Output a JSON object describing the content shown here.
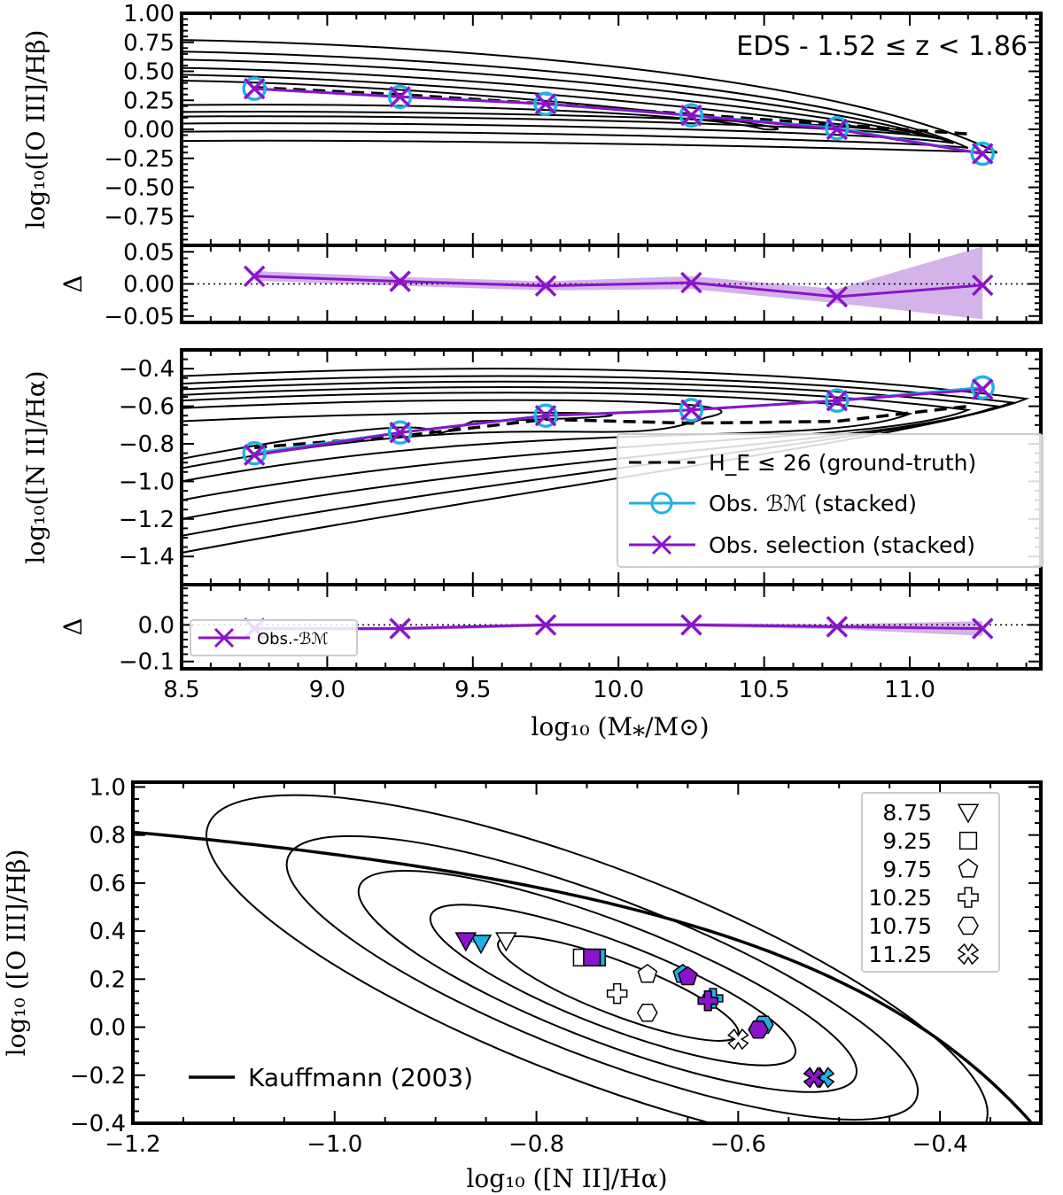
{
  "figure": {
    "panel_a_note": "EDS - 1.52 ≤ z < 1.86",
    "legend_main": {
      "ground_truth": "H_E ≤ 26 (ground-truth)",
      "bm": "Obs. ℬℳ (stacked)",
      "selection": "Obs. selection (stacked)"
    },
    "legend_delta": "Obs.-ℬℳ",
    "xlabel_top": "log₁₀ (M⁎/M⊙)",
    "xlabel_bottom": "log₁₀ ([N II]/Hα)",
    "kauffmann_label": "Kauffmann (2003)"
  },
  "colors": {
    "bm": "#1fb1e6",
    "selection": "#8a14c9",
    "selection_fill": "#c9a0e6",
    "contour": "#000000"
  },
  "chart_data": [
    {
      "id": "o3hb_vs_mass",
      "type": "line",
      "ylabel": "log₁₀([O III]/Hβ)",
      "xlim": [
        8.5,
        11.45
      ],
      "ylim": [
        -1.0,
        1.0
      ],
      "yticks": [
        "1.00",
        "0.75",
        "0.50",
        "0.25",
        "0.00",
        "−0.25",
        "−0.50",
        "−0.75"
      ],
      "ytick_values": [
        1.0,
        0.75,
        0.5,
        0.25,
        0.0,
        -0.25,
        -0.5,
        -0.75
      ],
      "x": [
        8.75,
        9.25,
        9.75,
        10.25,
        10.75,
        11.25
      ],
      "series": [
        {
          "name": "H_E ≤ 26 (ground-truth)",
          "style": "dashed",
          "x": [
            8.75,
            9.25,
            9.75,
            10.25,
            10.75,
            11.2
          ],
          "values": [
            0.36,
            0.3,
            0.22,
            0.13,
            0.04,
            -0.04
          ]
        },
        {
          "name": "Obs. BM (stacked)",
          "marker": "circle",
          "values": [
            0.35,
            0.28,
            0.22,
            0.12,
            0.01,
            -0.21
          ]
        },
        {
          "name": "Obs. selection (stacked)",
          "marker": "x",
          "values": [
            0.35,
            0.28,
            0.22,
            0.12,
            0.0,
            -0.21
          ]
        }
      ]
    },
    {
      "id": "delta_o3hb",
      "type": "line",
      "ylabel": "Δ",
      "xlim": [
        8.5,
        11.45
      ],
      "ylim": [
        -0.06,
        0.06
      ],
      "yticks": [
        "0.05",
        "0.00",
        "−0.05"
      ],
      "ytick_values": [
        0.05,
        0.0,
        -0.05
      ],
      "x": [
        8.75,
        9.25,
        9.75,
        10.25,
        10.75,
        11.25
      ],
      "values": [
        0.012,
        0.004,
        -0.003,
        0.002,
        -0.02,
        -0.002
      ],
      "band_low": [
        0.005,
        -0.003,
        -0.01,
        -0.008,
        -0.03,
        -0.055
      ],
      "band_high": [
        0.02,
        0.011,
        0.004,
        0.012,
        -0.008,
        0.058
      ]
    },
    {
      "id": "n2ha_vs_mass",
      "type": "line",
      "ylabel": "log₁₀([N II]/Hα)",
      "xlim": [
        8.5,
        11.45
      ],
      "ylim": [
        -1.55,
        -0.3
      ],
      "yticks": [
        "−0.4",
        "−0.6",
        "−0.8",
        "−1.0",
        "−1.2",
        "−1.4"
      ],
      "ytick_values": [
        -0.4,
        -0.6,
        -0.8,
        -1.0,
        -1.2,
        -1.4
      ],
      "x": [
        8.75,
        9.25,
        9.75,
        10.25,
        10.75,
        11.25
      ],
      "series": [
        {
          "name": "H_E ≤ 26 (ground-truth)",
          "style": "dashed",
          "x": [
            8.75,
            9.25,
            9.75,
            10.25,
            10.75,
            11.2
          ],
          "values": [
            -0.82,
            -0.76,
            -0.67,
            -0.69,
            -0.68,
            -0.6
          ]
        },
        {
          "name": "Obs. BM (stacked)",
          "marker": "circle",
          "values": [
            -0.85,
            -0.74,
            -0.65,
            -0.62,
            -0.57,
            -0.5
          ]
        },
        {
          "name": "Obs. selection (stacked)",
          "marker": "x",
          "values": [
            -0.86,
            -0.74,
            -0.65,
            -0.62,
            -0.57,
            -0.51
          ]
        }
      ]
    },
    {
      "id": "delta_n2ha",
      "type": "line",
      "ylabel": "Δ",
      "xlim": [
        8.5,
        11.45
      ],
      "ylim": [
        -0.12,
        0.11
      ],
      "yticks": [
        "0.0",
        "−0.1"
      ],
      "ytick_values": [
        0.0,
        -0.1
      ],
      "x": [
        8.75,
        9.25,
        9.75,
        10.25,
        10.75,
        11.25
      ],
      "xticks": [
        "8.5",
        "9.0",
        "9.5",
        "10.0",
        "10.5",
        "11.0"
      ],
      "xtick_values": [
        8.5,
        9.0,
        9.5,
        10.0,
        10.5,
        11.0
      ],
      "values": [
        -0.01,
        -0.01,
        0.0,
        0.0,
        -0.005,
        -0.01
      ],
      "band_low": [
        -0.015,
        -0.015,
        -0.005,
        -0.005,
        -0.012,
        -0.03
      ],
      "band_high": [
        -0.005,
        -0.005,
        0.005,
        0.005,
        0.002,
        0.01
      ]
    },
    {
      "id": "bpt",
      "type": "scatter",
      "xlabel": "log₁₀ ([N II]/Hα)",
      "ylabel": "log₁₀ ([O III]/Hβ)",
      "xlim": [
        -1.2,
        -0.3
      ],
      "ylim": [
        -0.4,
        1.02
      ],
      "xticks": [
        "−1.2",
        "−1.0",
        "−0.8",
        "−0.6",
        "−0.4"
      ],
      "xtick_values": [
        -1.2,
        -1.0,
        -0.8,
        -0.6,
        -0.4
      ],
      "yticks": [
        "1.0",
        "0.8",
        "0.6",
        "0.4",
        "0.2",
        "0.0",
        "−0.2",
        "−0.4"
      ],
      "ytick_values": [
        1.0,
        0.8,
        0.6,
        0.4,
        0.2,
        0.0,
        -0.2,
        -0.4
      ],
      "kauffmann_curve": "0.61/(x-0.05)+1.3",
      "mass_bins": [
        {
          "label": "8.75",
          "marker": "triangle-down"
        },
        {
          "label": "9.25",
          "marker": "square"
        },
        {
          "label": "9.75",
          "marker": "pentagon"
        },
        {
          "label": "10.25",
          "marker": "plus"
        },
        {
          "label": "10.75",
          "marker": "hexagon"
        },
        {
          "label": "11.25",
          "marker": "x-thick"
        }
      ],
      "points": {
        "ground_truth": [
          [
            -0.83,
            0.36
          ],
          [
            -0.755,
            0.29
          ],
          [
            -0.69,
            0.22
          ],
          [
            -0.72,
            0.14
          ],
          [
            -0.69,
            0.06
          ],
          [
            -0.6,
            -0.05
          ]
        ],
        "bm": [
          [
            -0.855,
            0.35
          ],
          [
            -0.74,
            0.29
          ],
          [
            -0.655,
            0.22
          ],
          [
            -0.625,
            0.12
          ],
          [
            -0.575,
            0.01
          ],
          [
            -0.515,
            -0.21
          ]
        ],
        "selection": [
          [
            -0.87,
            0.36
          ],
          [
            -0.745,
            0.29
          ],
          [
            -0.65,
            0.21
          ],
          [
            -0.63,
            0.11
          ],
          [
            -0.58,
            -0.01
          ],
          [
            -0.525,
            -0.21
          ]
        ]
      }
    }
  ]
}
